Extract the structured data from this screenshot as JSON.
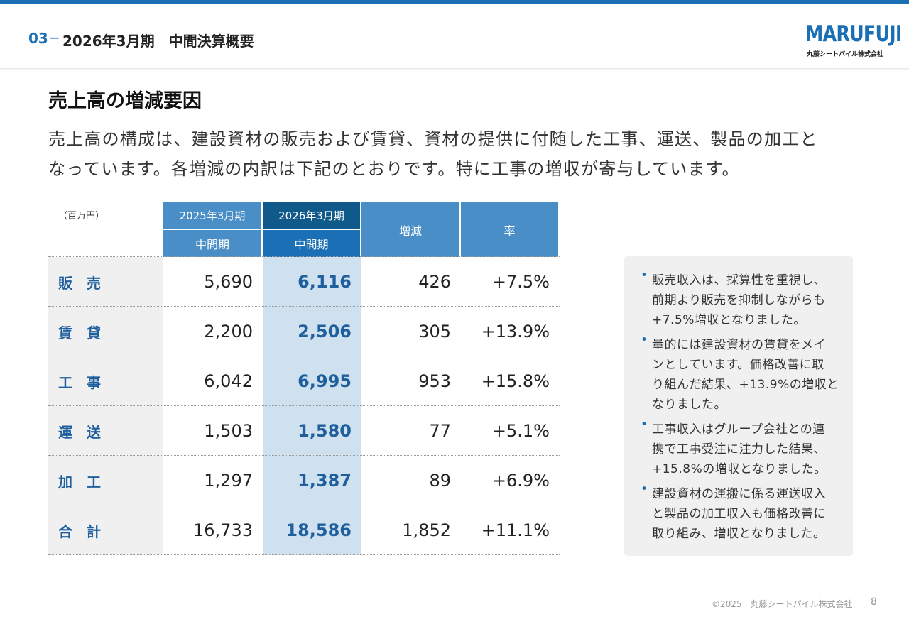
{
  "header": {
    "section": "03",
    "dash": "−",
    "title": "2026年3月期　中間決算概要",
    "logo": "MARUFUJI",
    "logo_sub": "丸藤シートパイル株式会社"
  },
  "heading": "売上高の増減要因",
  "intro": [
    "売上高の構成は、建設資材の販売および賃貸、資材の提供に付随した工事、運送、製品の加工と",
    "なっています。各増減の内訳は下記のとおりです。特に工事の増収が寄与しています。"
  ],
  "table": {
    "unit": "（百万円）",
    "columns": [
      {
        "top": "2025年3月期",
        "sub": "中間期"
      },
      {
        "top": "2026年3月期",
        "sub": "中間期"
      },
      {
        "top": "増減"
      },
      {
        "top": "率"
      }
    ],
    "rows": [
      [
        "販　売",
        "5,690",
        "6,116",
        "426",
        "+7.5%"
      ],
      [
        "賃　貸",
        "2,200",
        "2,506",
        "305",
        "+13.9%"
      ],
      [
        "工　事",
        "6,042",
        "6,995",
        "953",
        "+15.8%"
      ],
      [
        "運　送",
        "1,503",
        "1,580",
        "77",
        "+5.1%"
      ],
      [
        "加　工",
        "1,297",
        "1,387",
        "89",
        "+6.9%"
      ],
      [
        "合　計",
        "16,733",
        "18,586",
        "1,852",
        "+11.1%"
      ]
    ]
  },
  "notes": [
    [
      "販売収入は、採算性を重視し、",
      "前期より販売を抑制しながらも",
      "+7.5%増収となりました。"
    ],
    [
      "量的には建設資材の賃貸をメイ",
      "ンとしています。価格改善に取",
      "り組んだ結果、+13.9%の増収と",
      "なりました。"
    ],
    [
      "工事収入はグループ会社との連",
      "携で工事受注に注力した結果、",
      "+15.8%の増収となりました。"
    ],
    [
      "建設資材の運搬に係る運送収入",
      "と製品の加工収入も価格改善に",
      "取り組み、増収となりました。"
    ]
  ],
  "footer": {
    "copyright": "©2025　丸藤シートパイル株式会社",
    "page": "8"
  }
}
